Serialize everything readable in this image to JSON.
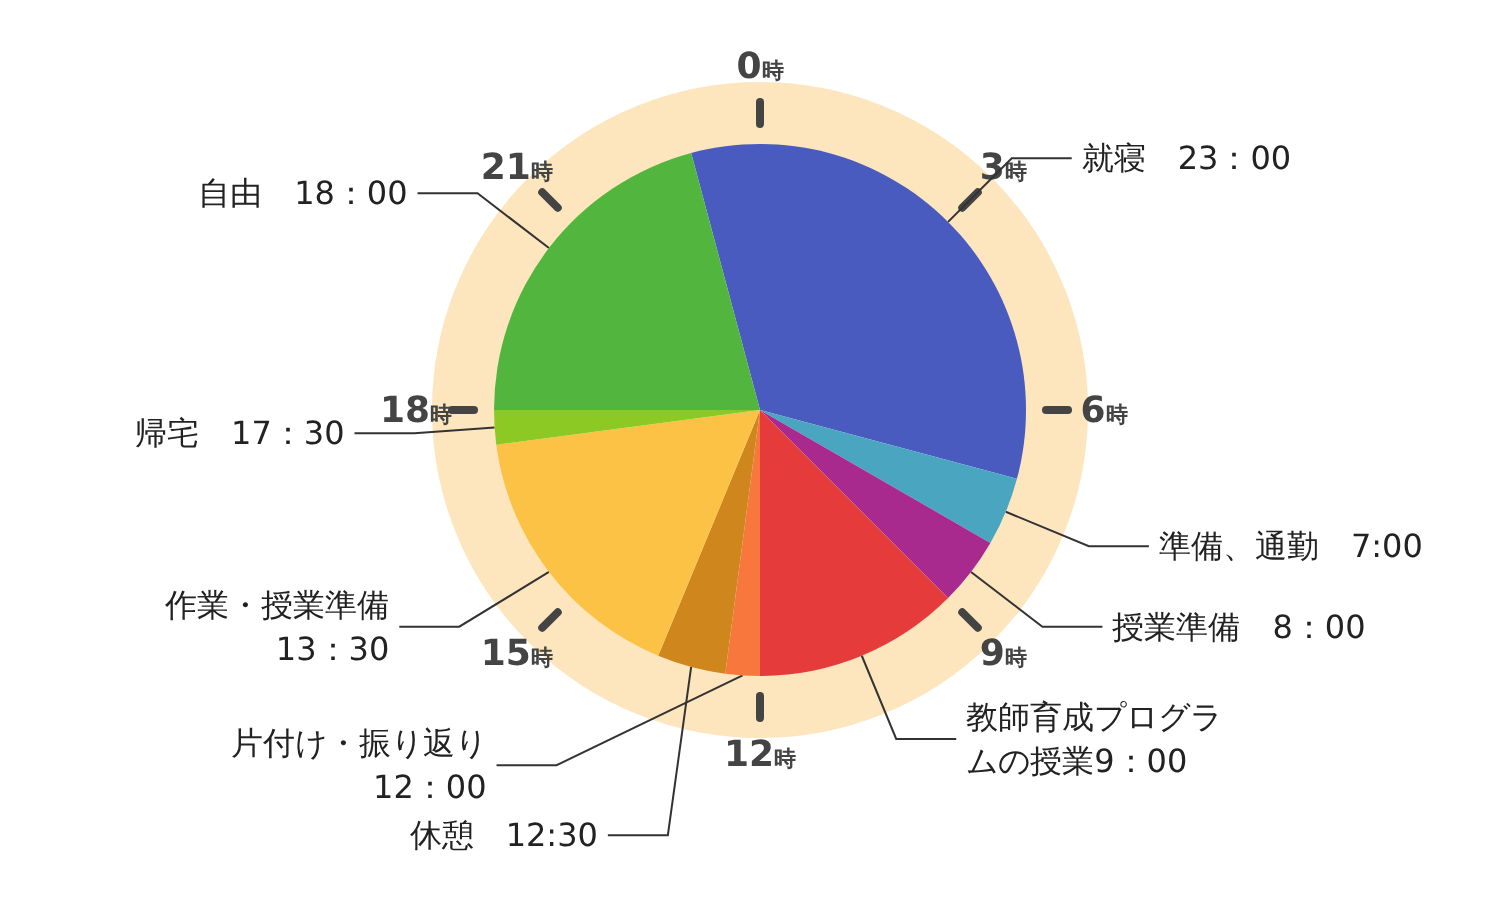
{
  "chart_data": {
    "type": "pie",
    "categories": [
      "就寝　23：00",
      "準備、通勤　7:00",
      "授業準備　8：00",
      "教師育成プログラムの授業9：00",
      "片付け・振り返り12：00",
      "休憩　12:30",
      "作業・授業準備13：30",
      "帰宅　17：30",
      "自由　18：00"
    ],
    "values": [
      8,
      1,
      1,
      3,
      0.5,
      1,
      4,
      0.5,
      5
    ],
    "colors": [
      "#4a5bc0",
      "#4aa5c0",
      "#a82a8e",
      "#e53b3b",
      "#f7773d",
      "#cf861c",
      "#fbc245",
      "#8dc925",
      "#52b53d"
    ],
    "annotations": [
      "0時",
      "3時",
      "6時",
      "9時",
      "12時",
      "15時",
      "18時",
      "21時"
    ]
  }
}
